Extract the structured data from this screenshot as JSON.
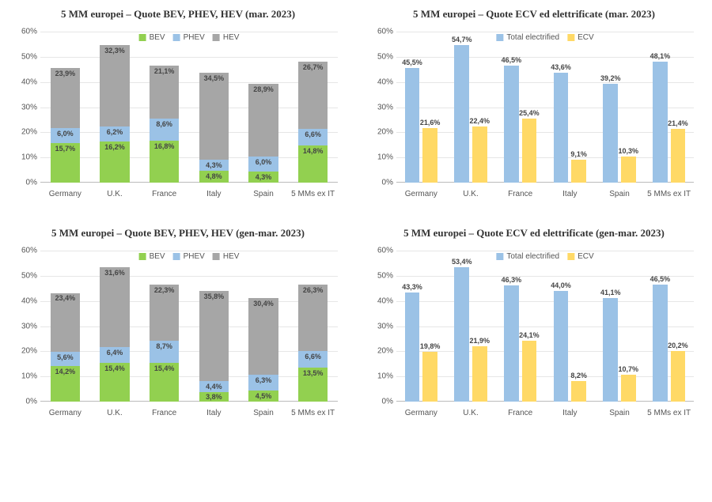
{
  "colors": {
    "bev": "#92d050",
    "phev": "#9bc2e6",
    "hev": "#a6a6a6",
    "total_elec": "#9bc2e6",
    "ecv": "#ffd966",
    "grid": "#e6e6e6",
    "baseline": "#bbbbbb",
    "text": "#555555"
  },
  "categories": [
    "Germany",
    "U.K.",
    "France",
    "Italy",
    "Spain",
    "5 MMs ex IT"
  ],
  "yaxis": {
    "min": 0,
    "max": 60,
    "step": 10,
    "suffix": "%"
  },
  "stacked_legend": [
    {
      "label": "BEV",
      "color_key": "bev"
    },
    {
      "label": "PHEV",
      "color_key": "phev"
    },
    {
      "label": "HEV",
      "color_key": "hev"
    }
  ],
  "grouped_legend": [
    {
      "label": "Total electrified",
      "color_key": "total_elec"
    },
    {
      "label": "ECV",
      "color_key": "ecv"
    }
  ],
  "charts": {
    "tl": {
      "title": "5 MM europei – Quote BEV, PHEV, HEV (mar. 2023)",
      "type": "stacked",
      "series": {
        "bev": [
          15.7,
          16.2,
          16.8,
          4.8,
          4.3,
          14.8
        ],
        "phev": [
          6.0,
          6.2,
          8.6,
          4.3,
          6.0,
          6.6
        ],
        "hev": [
          23.9,
          32.3,
          21.1,
          34.5,
          28.9,
          26.7
        ]
      }
    },
    "tr": {
      "title": "5 MM europei – Quote ECV ed elettrificate (mar. 2023)",
      "type": "grouped",
      "series": {
        "total_elec": [
          45.5,
          54.7,
          46.5,
          43.6,
          39.2,
          48.1
        ],
        "ecv": [
          21.6,
          22.4,
          25.4,
          9.1,
          10.3,
          21.4
        ]
      }
    },
    "bl": {
      "title": "5 MM europei – Quote BEV, PHEV, HEV (gen-mar. 2023)",
      "type": "stacked",
      "series": {
        "bev": [
          14.2,
          15.4,
          15.4,
          3.8,
          4.5,
          13.5
        ],
        "phev": [
          5.6,
          6.4,
          8.7,
          4.4,
          6.3,
          6.6
        ],
        "hev": [
          23.4,
          31.6,
          22.3,
          35.8,
          30.4,
          26.3
        ]
      }
    },
    "br": {
      "title": "5 MM europei – Quote ECV ed elettrificate (gen-mar. 2023)",
      "type": "grouped",
      "series": {
        "total_elec": [
          43.3,
          53.4,
          46.3,
          44.0,
          41.1,
          46.5
        ],
        "ecv": [
          19.8,
          21.9,
          24.1,
          8.2,
          10.7,
          20.2
        ]
      }
    }
  }
}
